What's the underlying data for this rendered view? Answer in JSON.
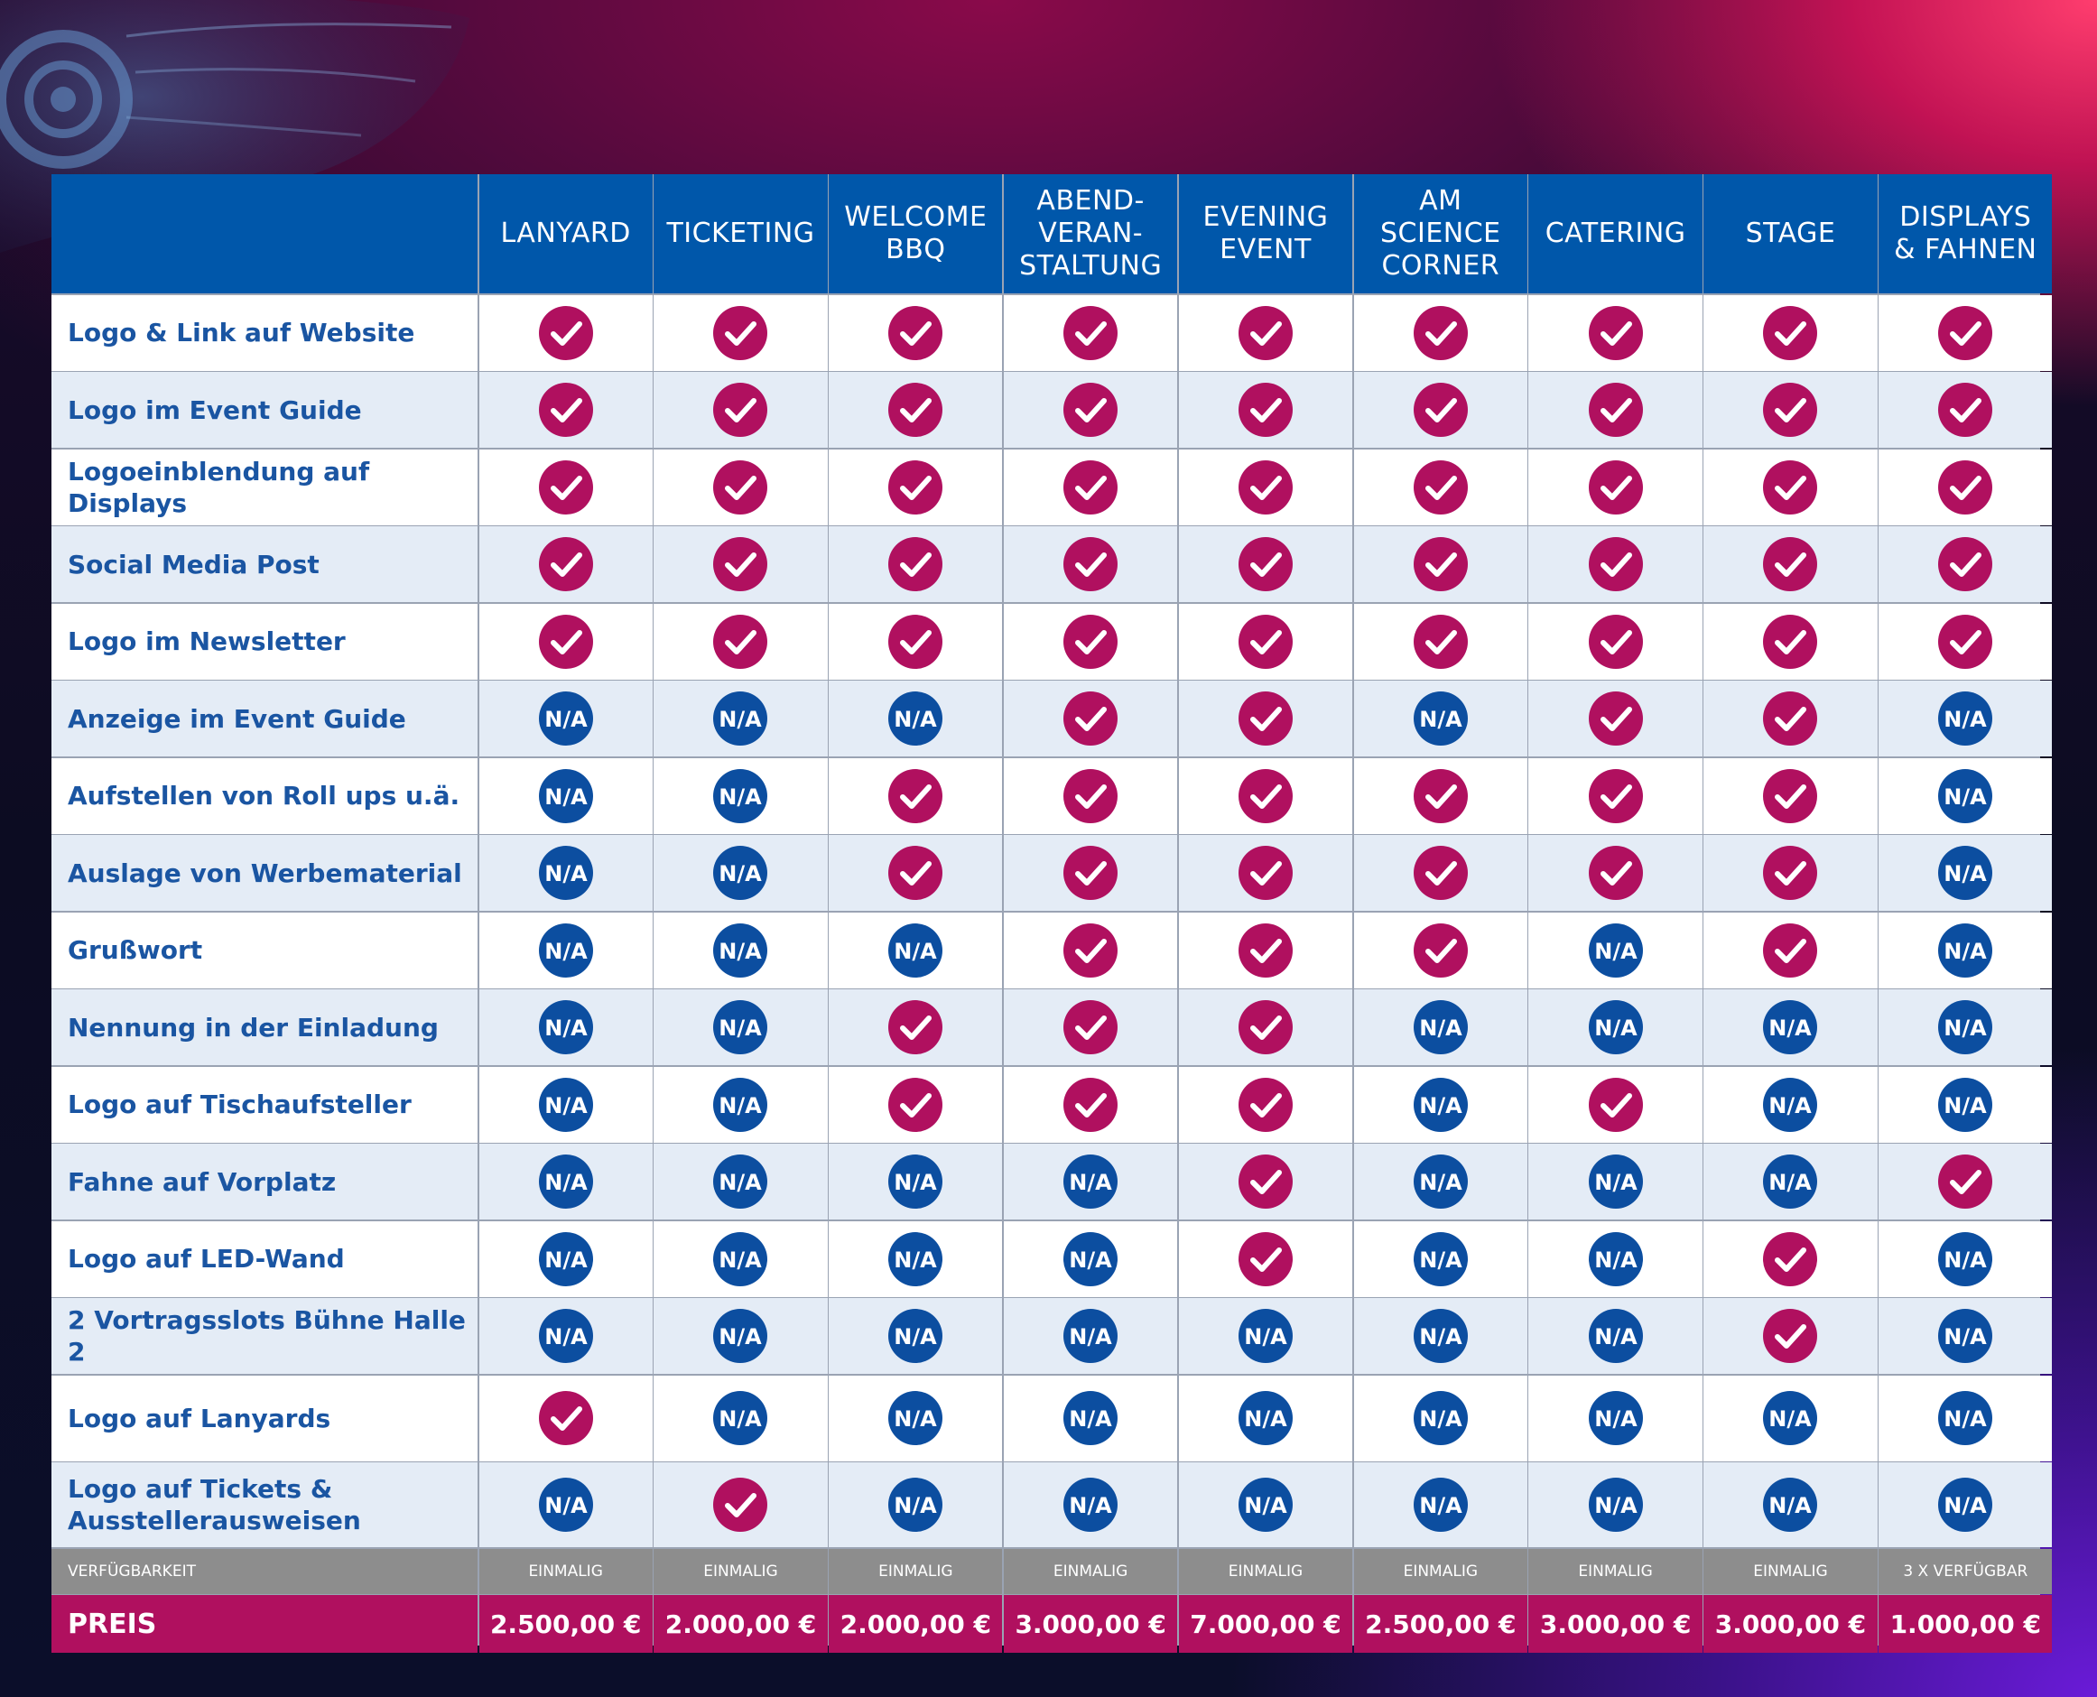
{
  "colors": {
    "header_blue": "#0057aa",
    "check_magenta": "#b0105f",
    "na_blue": "#0c4ea0",
    "feature_text": "#1a55a2",
    "availability_gray": "#8d8d8d",
    "price_magenta": "#b0105f"
  },
  "icons": {
    "yes": "checkmark-circle-icon",
    "no": "na-circle-icon",
    "na_text": "N/A"
  },
  "columns": [
    "LANYARD",
    "TICKETING",
    "WELCOME\nBBQ",
    "ABEND-\nVERAN-\nSTALTUNG",
    "EVENING\nEVENT",
    "AM\nSCIENCE\nCORNER",
    "CATERING",
    "STAGE",
    "DISPLAYS\n& FAHNEN"
  ],
  "rows": [
    {
      "label": "Logo & Link auf Website",
      "values": [
        true,
        true,
        true,
        true,
        true,
        true,
        true,
        true,
        true
      ]
    },
    {
      "label": "Logo im Event Guide",
      "values": [
        true,
        true,
        true,
        true,
        true,
        true,
        true,
        true,
        true
      ]
    },
    {
      "label": "Logoeinblendung auf Displays",
      "values": [
        true,
        true,
        true,
        true,
        true,
        true,
        true,
        true,
        true
      ]
    },
    {
      "label": "Social Media Post",
      "values": [
        true,
        true,
        true,
        true,
        true,
        true,
        true,
        true,
        true
      ]
    },
    {
      "label": "Logo im Newsletter",
      "values": [
        true,
        true,
        true,
        true,
        true,
        true,
        true,
        true,
        true
      ]
    },
    {
      "label": "Anzeige im Event Guide",
      "values": [
        false,
        false,
        false,
        true,
        true,
        false,
        true,
        true,
        false
      ]
    },
    {
      "label": "Aufstellen von Roll ups u.ä.",
      "values": [
        false,
        false,
        true,
        true,
        true,
        true,
        true,
        true,
        false
      ]
    },
    {
      "label": "Auslage von Werbematerial",
      "values": [
        false,
        false,
        true,
        true,
        true,
        true,
        true,
        true,
        false
      ]
    },
    {
      "label": "Grußwort",
      "values": [
        false,
        false,
        false,
        true,
        true,
        true,
        false,
        true,
        false
      ]
    },
    {
      "label": "Nennung in der Einladung",
      "values": [
        false,
        false,
        true,
        true,
        true,
        false,
        false,
        false,
        false
      ]
    },
    {
      "label": "Logo auf Tischaufsteller",
      "values": [
        false,
        false,
        true,
        true,
        true,
        false,
        true,
        false,
        false
      ]
    },
    {
      "label": "Fahne auf Vorplatz",
      "values": [
        false,
        false,
        false,
        false,
        true,
        false,
        false,
        false,
        true
      ]
    },
    {
      "label": "Logo auf LED-Wand",
      "values": [
        false,
        false,
        false,
        false,
        true,
        false,
        false,
        true,
        false
      ]
    },
    {
      "label": "2 Vortragsslots Bühne Halle 2",
      "values": [
        false,
        false,
        false,
        false,
        false,
        false,
        false,
        true,
        false
      ]
    },
    {
      "label": "Logo auf Lanyards",
      "values": [
        true,
        false,
        false,
        false,
        false,
        false,
        false,
        false,
        false
      ]
    },
    {
      "label": "Logo auf Tickets &\nAusstellerausweisen",
      "values": [
        false,
        true,
        false,
        false,
        false,
        false,
        false,
        false,
        false
      ]
    }
  ],
  "availability": {
    "label": "VERFÜGBARKEIT",
    "values": [
      "EINMALIG",
      "EINMALIG",
      "EINMALIG",
      "EINMALIG",
      "EINMALIG",
      "EINMALIG",
      "EINMALIG",
      "EINMALIG",
      "3 X VERFÜGBAR"
    ]
  },
  "price": {
    "label": "PREIS",
    "values": [
      "2.500,00 €",
      "2.000,00 €",
      "2.000,00 €",
      "3.000,00 €",
      "7.000,00 €",
      "2.500,00 €",
      "3.000,00 €",
      "3.000,00 €",
      "1.000,00 €"
    ]
  }
}
